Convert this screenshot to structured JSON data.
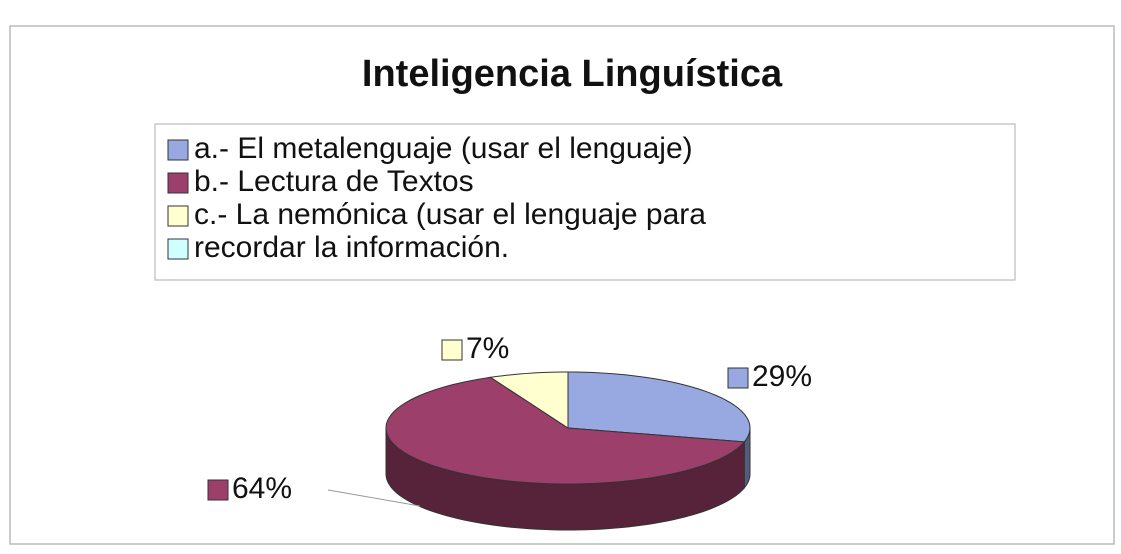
{
  "chart_data": {
    "type": "pie3d",
    "title": "Inteligencia Linguística",
    "categories": [
      "a.- El metalenguaje (usar el lenguaje)",
      "b.- Lectura de Textos",
      "c.- La nemónica (usar el lenguaje para",
      "recordar la información."
    ],
    "values": [
      29,
      64,
      7,
      0
    ],
    "value_labels": [
      "29%",
      "64%",
      "7%",
      null
    ],
    "colors": [
      "#98a8e0",
      "#9c3f6b",
      "#ffffd0",
      "#d0ffff"
    ]
  }
}
